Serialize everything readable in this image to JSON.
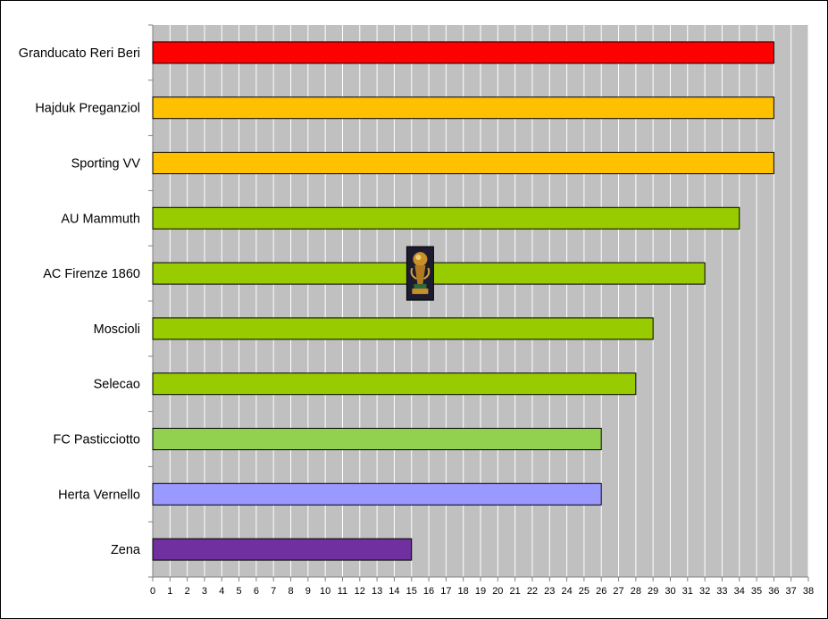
{
  "chart_data": {
    "type": "bar",
    "orientation": "horizontal",
    "title": "",
    "xlabel": "",
    "ylabel": "",
    "xlim": [
      0,
      38
    ],
    "x_ticks": [
      "0",
      "1",
      "2",
      "3",
      "4",
      "5",
      "6",
      "7",
      "8",
      "9",
      "10",
      "11",
      "12",
      "13",
      "14",
      "15",
      "16",
      "17",
      "18",
      "19",
      "20",
      "21",
      "22",
      "23",
      "24",
      "25",
      "26",
      "27",
      "28",
      "29",
      "30",
      "31",
      "32",
      "33",
      "34",
      "35",
      "36",
      "37",
      "38"
    ],
    "grid": "vertical",
    "plot_background": "#c0c0c0",
    "categories": [
      "Granducato Reri Beri",
      "Hajduk Preganziol",
      "Sporting VV",
      "AU Mammuth",
      "AC Firenze 1860",
      "Moscioli",
      "Selecao",
      "FC Pasticciotto",
      "Herta Vernello",
      "Zena"
    ],
    "values": [
      36,
      36,
      36,
      34,
      32,
      29,
      28,
      26,
      26,
      15
    ],
    "colors": [
      "#ff0000",
      "#ffc000",
      "#ffc000",
      "#99cc00",
      "#99cc00",
      "#99cc00",
      "#99cc00",
      "#92d050",
      "#9999ff",
      "#7030a0"
    ],
    "annotation_icon": "trophy-icon"
  }
}
